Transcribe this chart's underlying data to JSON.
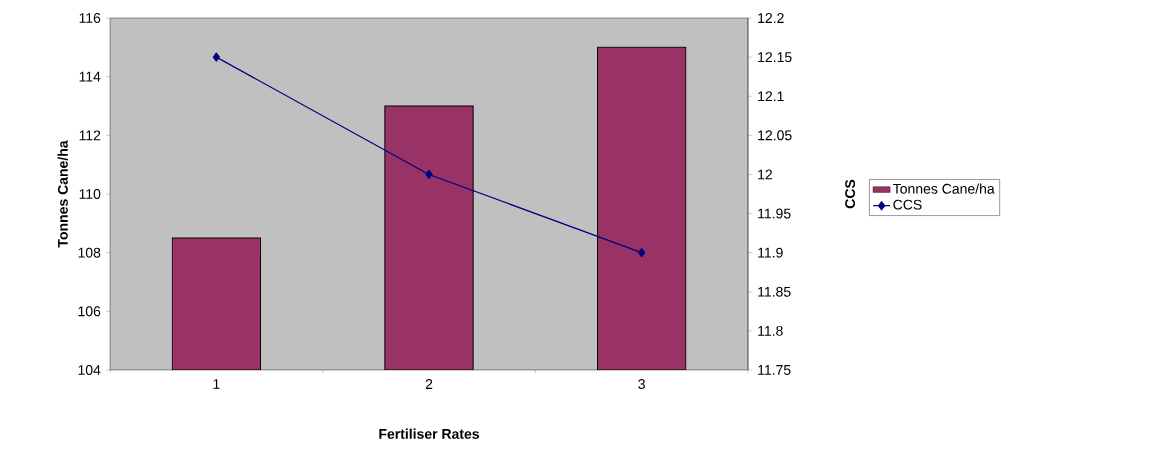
{
  "chart_data": {
    "type": "bar",
    "xlabel": "Fertiliser Rates",
    "ylabel": "Tonnes Cane/ha",
    "y2label": "CCS",
    "categories": [
      "1",
      "2",
      "3"
    ],
    "series": [
      {
        "name": "Tonnes Cane/ha",
        "color": "#993366",
        "values": [
          108.5,
          113,
          115
        ]
      },
      {
        "name": "CCS",
        "type": "line",
        "axis": "y2",
        "color": "#000080",
        "values": [
          12.15,
          12.0,
          11.9
        ]
      }
    ],
    "ylim": [
      104,
      116
    ],
    "yticks": [
      104,
      106,
      108,
      110,
      112,
      114,
      116
    ],
    "y2lim": [
      11.75,
      12.2
    ],
    "y2ticks": [
      11.75,
      11.8,
      11.85,
      11.9,
      11.95,
      12,
      12.05,
      12.1,
      12.15,
      12.2
    ],
    "marker": "diamond",
    "grid": false,
    "legend": "right"
  }
}
